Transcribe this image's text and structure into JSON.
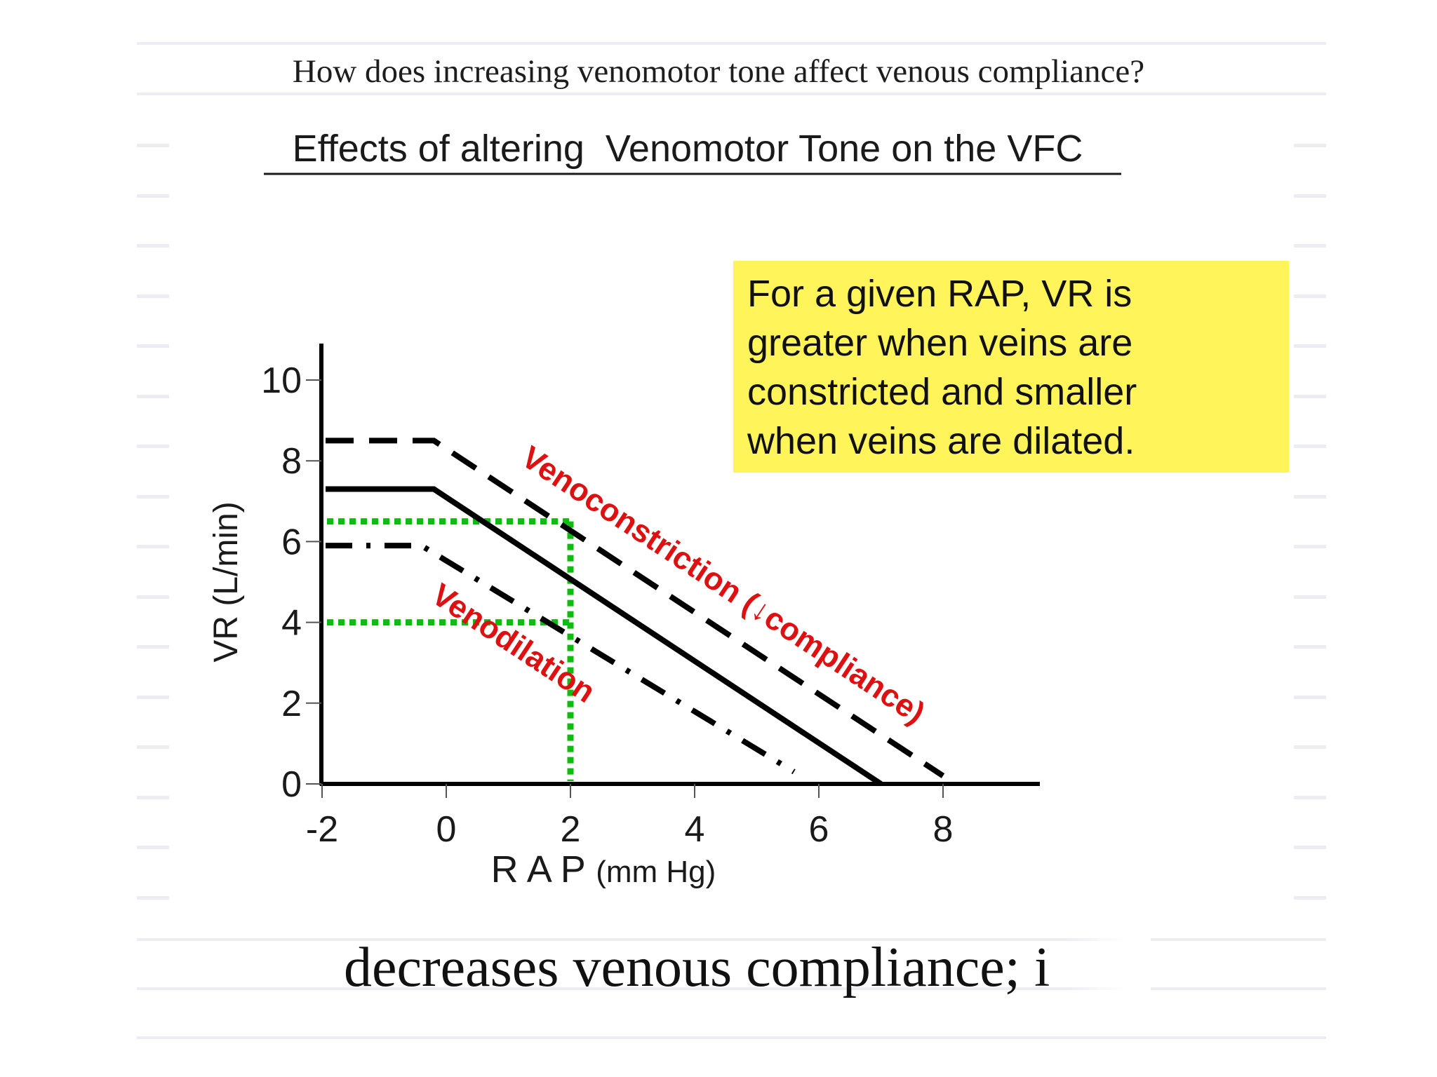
{
  "question": "How does increasing venomotor tone affect venous compliance?",
  "answer_text": "decreases venous compliance; i",
  "chart_data": {
    "type": "line",
    "title": "Effects of altering  Venomotor Tone on the VFC",
    "xlabel_main": "R A P",
    "xlabel_unit": "(mm Hg)",
    "ylabel": "VR (L/min)",
    "xlim": [
      -2.5,
      9.5
    ],
    "ylim": [
      0,
      11
    ],
    "x_ticks": [
      {
        "value": -2,
        "label": "-2"
      },
      {
        "value": 0,
        "label": "0"
      },
      {
        "value": 2,
        "label": "2"
      },
      {
        "value": 4,
        "label": "4"
      },
      {
        "value": 6,
        "label": "6"
      },
      {
        "value": 8,
        "label": "8"
      }
    ],
    "y_ticks": [
      {
        "value": 0,
        "label": "0"
      },
      {
        "value": 2,
        "label": "2"
      },
      {
        "value": 4,
        "label": "4"
      },
      {
        "value": 6,
        "label": "6"
      },
      {
        "value": 8,
        "label": "8"
      },
      {
        "value": 10,
        "label": "10"
      }
    ],
    "series": [
      {
        "key": "normal",
        "style": "solid",
        "color": "#000000",
        "points": [
          [
            -2.5,
            7.3
          ],
          [
            -0.2,
            7.3
          ],
          [
            7.0,
            0
          ]
        ]
      },
      {
        "key": "venoconstriction",
        "style": "dashed",
        "color": "#000000",
        "points": [
          [
            -2.5,
            8.5
          ],
          [
            -0.2,
            8.5
          ],
          [
            8.0,
            0.2
          ]
        ]
      },
      {
        "key": "venodilation",
        "style": "dashdot",
        "color": "#000000",
        "points": [
          [
            -2.5,
            5.9
          ],
          [
            -0.4,
            5.9
          ],
          [
            5.6,
            0.3
          ]
        ]
      }
    ],
    "guides": {
      "color": "#11bb11",
      "x_value": 2,
      "y_values": [
        6.5,
        4.0
      ]
    },
    "curve_labels": [
      {
        "key": "venoconstriction",
        "text": "Venoconstriction (↓compliance)",
        "color": "#dd1111"
      },
      {
        "key": "venodilation",
        "text": "Venodilation",
        "color": "#dd1111"
      }
    ],
    "note": {
      "lines": [
        "For a given RAP, VR is",
        "greater when veins are",
        "constricted and smaller",
        "when veins are dilated."
      ],
      "background": "#fff55a"
    }
  }
}
